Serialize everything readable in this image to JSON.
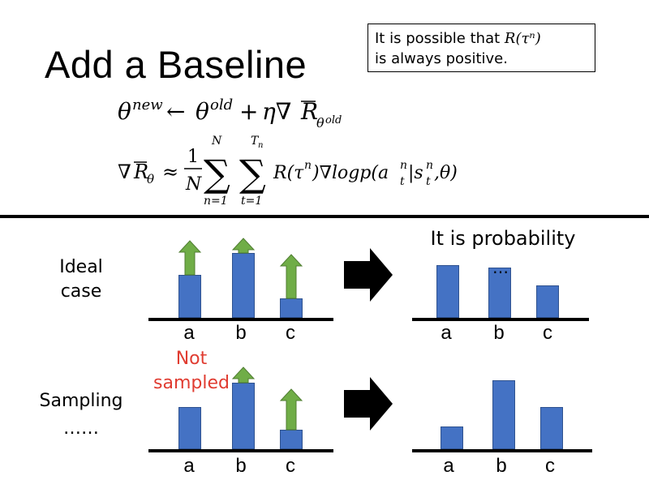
{
  "slide": {
    "title": "Add a Baseline",
    "note": {
      "line1_prefix": "It is possible that ",
      "line1_math": "R(τⁿ)",
      "line2": "is always positive."
    }
  },
  "equations": {
    "update": "θnew ← θold + η∇R̄θold",
    "gradient": "∇R̄θ ≈ (1/N) Σ Σ R(τⁿ)∇logp(aₜⁿ|sₜⁿ,θ)"
  },
  "ideal": {
    "label_line1": "Ideal",
    "label_line2": "case",
    "result_label": "It is probability",
    "ellipsis": "…",
    "ticks": [
      "a",
      "b",
      "c"
    ],
    "bars": [
      0.44,
      0.67,
      0.2
    ],
    "arrows": [
      0.35,
      0.15,
      0.45
    ],
    "result_bars": [
      0.54,
      0.52,
      0.33
    ]
  },
  "sampling": {
    "label_line1": "Sampling",
    "label_line2": "……",
    "not_sampled_line1": "Not",
    "not_sampled_line2": "sampled",
    "ticks": [
      "a",
      "b",
      "c"
    ],
    "bars": [
      0.43,
      0.68,
      0.2
    ],
    "arrows": [
      0,
      0.16,
      0.42
    ],
    "result_bars": [
      0.23,
      0.71,
      0.43
    ]
  },
  "colors": {
    "bar": "#4472c4",
    "arrow": "#70ad47",
    "highlight": "#e03c31"
  }
}
